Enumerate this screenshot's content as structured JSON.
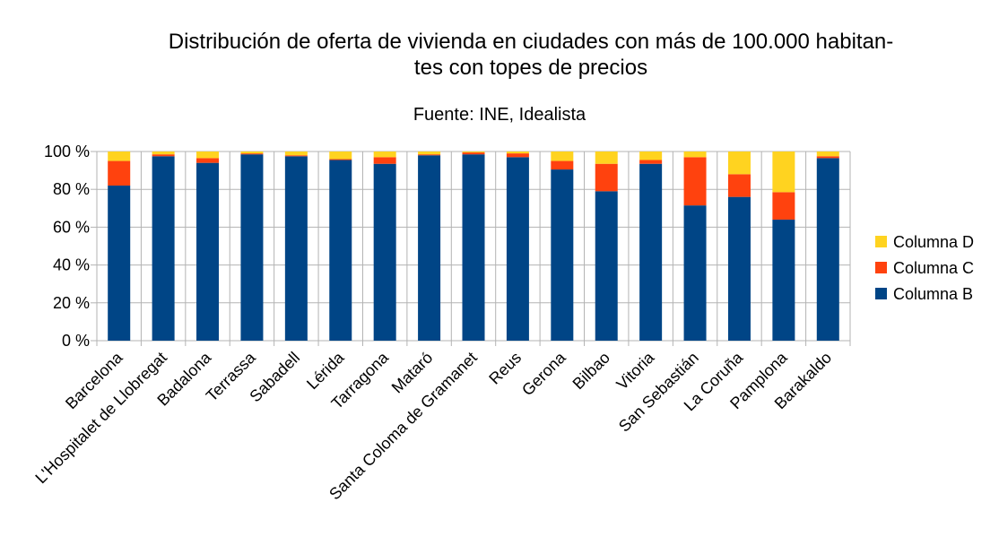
{
  "chart_data": {
    "type": "bar",
    "stacked": true,
    "title_lines": [
      "Distribución de oferta de vivienda en ciudades con más de 100.000 habitan-",
      "tes con topes de precios"
    ],
    "subtitle": "Fuente: INE, Idealista",
    "ylim": [
      0,
      100
    ],
    "yticks": [
      "0 %",
      "20 %",
      "40 %",
      "60 %",
      "80 %",
      "100 %"
    ],
    "categories": [
      "Barcelona",
      "L'Hospitalet de Llobregat",
      "Badalona",
      "Terrassa",
      "Sabadell",
      "Lérida",
      "Tarragona",
      "Mataró",
      "Santa Coloma de Gramanet",
      "Reus",
      "Gerona",
      "Bilbao",
      "Vitoria",
      "San Sebastián",
      "La Coruña",
      "Pamplona",
      "Barakaldo"
    ],
    "series": [
      {
        "name": "Columna B",
        "color": "#004586",
        "values": [
          82,
          97.5,
          94,
          98.5,
          97.5,
          95.5,
          93.5,
          98,
          98.5,
          97,
          90.5,
          79,
          93.5,
          71.5,
          76,
          64,
          96.5
        ]
      },
      {
        "name": "Columna C",
        "color": "#ff420e",
        "values": [
          13,
          1,
          2.5,
          0.5,
          0.5,
          0.5,
          3.5,
          0.5,
          1,
          2,
          4.5,
          14.5,
          2,
          25.5,
          12,
          14.5,
          1
        ]
      },
      {
        "name": "Columna D",
        "color": "#ffd320",
        "values": [
          5,
          1.5,
          3.5,
          1,
          2,
          4,
          3,
          1.5,
          0.5,
          1,
          5,
          6.5,
          4.5,
          3,
          12,
          21.5,
          2.5
        ]
      }
    ],
    "legend_order": [
      "Columna D",
      "Columna C",
      "Columna B"
    ],
    "legend_position": "right",
    "grid": true
  }
}
